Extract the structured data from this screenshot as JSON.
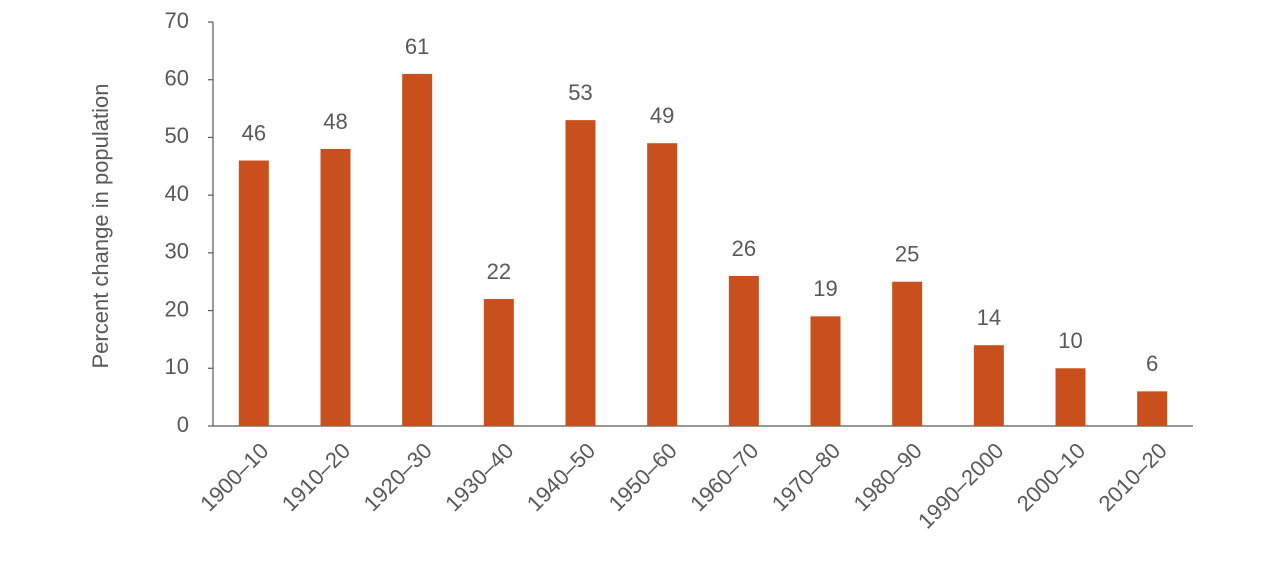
{
  "chart_data": {
    "type": "bar",
    "y_label": "Percent change in population",
    "categories": [
      "1900–10",
      "1910–20",
      "1920–30",
      "1930–40",
      "1940–50",
      "1950–60",
      "1960–70",
      "1970–80",
      "1980–90",
      "1990–2000",
      "2000–10",
      "2010–20"
    ],
    "values": [
      46,
      48,
      61,
      22,
      53,
      49,
      26,
      19,
      25,
      14,
      10,
      6
    ],
    "color": "#c9501c",
    "ylim": [
      0,
      70
    ],
    "yticks": [
      0,
      10,
      20,
      30,
      40,
      50,
      60,
      70
    ],
    "grid": false
  }
}
